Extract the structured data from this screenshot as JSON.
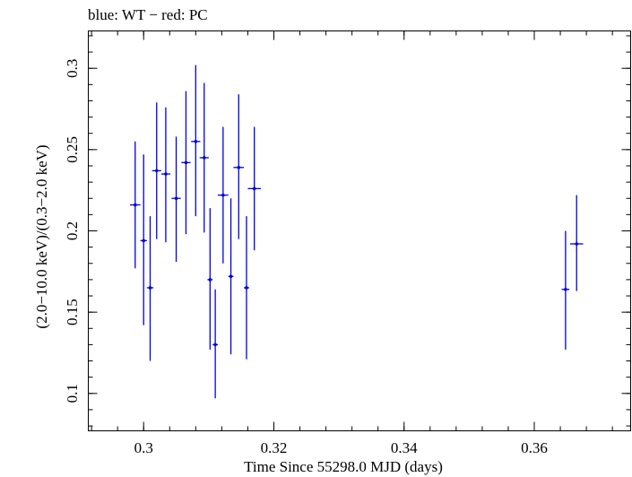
{
  "chart_data": {
    "type": "scatter",
    "title": "blue: WT − red: PC",
    "xlabel": "Time Since 55298.0 MJD (days)",
    "ylabel": "(2.0−10.0 keV)/(0.3−2.0 keV)",
    "xlim": [
      0.2915,
      0.3748
    ],
    "ylim": [
      0.077,
      0.323
    ],
    "x_ticks": [
      0.3,
      0.32,
      0.34,
      0.36
    ],
    "x_tick_labels": [
      "0.3",
      "0.32",
      "0.34",
      "0.36"
    ],
    "y_ticks": [
      0.1,
      0.15,
      0.2,
      0.25,
      0.3
    ],
    "y_tick_labels": [
      "0.1",
      "0.15",
      "0.2",
      "0.25",
      "0.3"
    ],
    "grid": false,
    "series": [
      {
        "color": "#0000e0",
        "points": [
          {
            "x": 0.2987,
            "xerr": 0.0008,
            "y": 0.216,
            "ylo": 0.177,
            "yhi": 0.255
          },
          {
            "x": 0.3,
            "xerr": 0.0005,
            "y": 0.194,
            "ylo": 0.142,
            "yhi": 0.247
          },
          {
            "x": 0.301,
            "xerr": 0.0005,
            "y": 0.165,
            "ylo": 0.12,
            "yhi": 0.209
          },
          {
            "x": 0.302,
            "xerr": 0.0007,
            "y": 0.237,
            "ylo": 0.195,
            "yhi": 0.279
          },
          {
            "x": 0.3034,
            "xerr": 0.0007,
            "y": 0.235,
            "ylo": 0.193,
            "yhi": 0.276
          },
          {
            "x": 0.305,
            "xerr": 0.0007,
            "y": 0.22,
            "ylo": 0.181,
            "yhi": 0.258
          },
          {
            "x": 0.3065,
            "xerr": 0.0007,
            "y": 0.242,
            "ylo": 0.198,
            "yhi": 0.286
          },
          {
            "x": 0.308,
            "xerr": 0.0007,
            "y": 0.255,
            "ylo": 0.209,
            "yhi": 0.302
          },
          {
            "x": 0.3093,
            "xerr": 0.0007,
            "y": 0.245,
            "ylo": 0.199,
            "yhi": 0.291
          },
          {
            "x": 0.3102,
            "xerr": 0.0004,
            "y": 0.17,
            "ylo": 0.127,
            "yhi": 0.214
          },
          {
            "x": 0.311,
            "xerr": 0.0004,
            "y": 0.13,
            "ylo": 0.097,
            "yhi": 0.164
          },
          {
            "x": 0.3122,
            "xerr": 0.0008,
            "y": 0.222,
            "ylo": 0.18,
            "yhi": 0.264
          },
          {
            "x": 0.3134,
            "xerr": 0.0004,
            "y": 0.172,
            "ylo": 0.124,
            "yhi": 0.22
          },
          {
            "x": 0.3146,
            "xerr": 0.0008,
            "y": 0.239,
            "ylo": 0.195,
            "yhi": 0.284
          },
          {
            "x": 0.3158,
            "xerr": 0.0004,
            "y": 0.165,
            "ylo": 0.121,
            "yhi": 0.209
          },
          {
            "x": 0.317,
            "xerr": 0.001,
            "y": 0.226,
            "ylo": 0.188,
            "yhi": 0.264
          },
          {
            "x": 0.3648,
            "xerr": 0.0006,
            "y": 0.164,
            "ylo": 0.127,
            "yhi": 0.2
          },
          {
            "x": 0.3665,
            "xerr": 0.001,
            "y": 0.192,
            "ylo": 0.163,
            "yhi": 0.222
          }
        ]
      }
    ]
  }
}
